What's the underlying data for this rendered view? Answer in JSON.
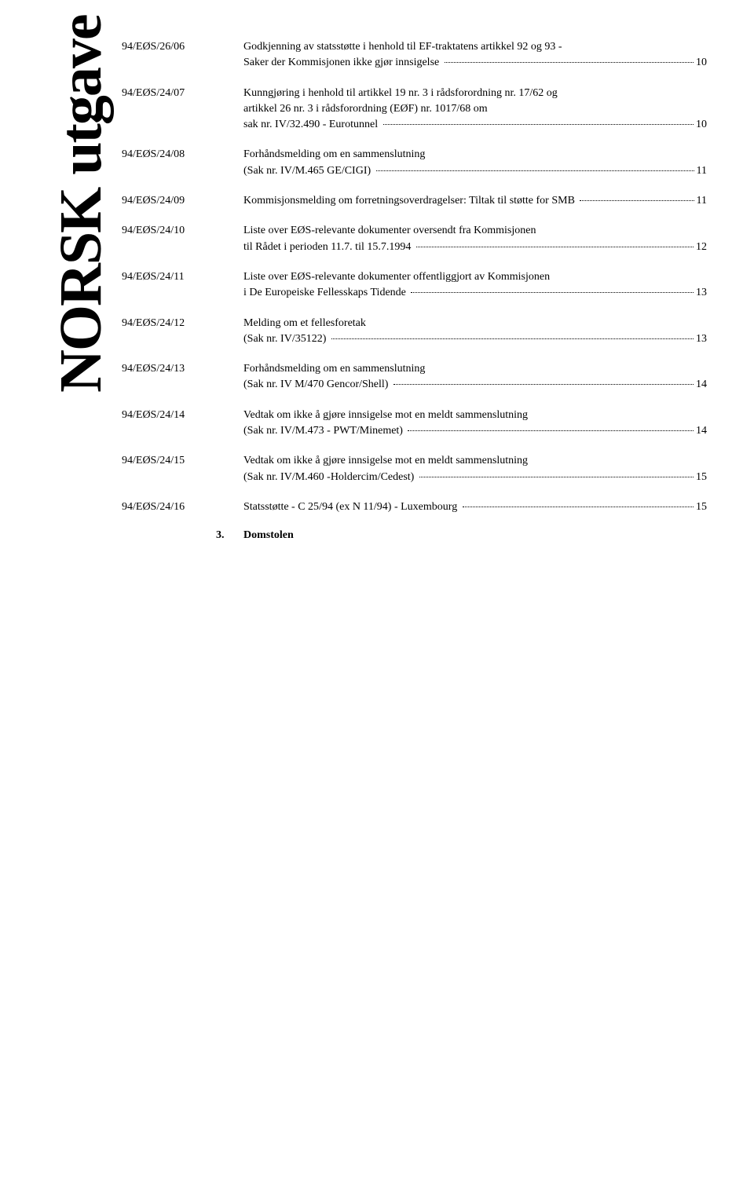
{
  "side_label": "NORSK utgave",
  "entries": [
    {
      "code": "94/EØS/26/06",
      "lines": [
        "Godkjenning av statsstøtte i henhold til EF-traktatens artikkel 92 og 93 -"
      ],
      "last_line": "Saker der Kommisjonen ikke gjør innsigelse",
      "page": "10"
    },
    {
      "code": "94/EØS/24/07",
      "lines": [
        "Kunngjøring i henhold til artikkel 19 nr. 3 i rådsforordning nr. 17/62 og",
        "artikkel 26 nr. 3 i rådsforordning (EØF) nr. 1017/68 om"
      ],
      "last_line": "sak nr. IV/32.490 - Eurotunnel",
      "page": "10"
    },
    {
      "code": "94/EØS/24/08",
      "lines": [
        "Forhåndsmelding om en sammenslutning"
      ],
      "last_line": "(Sak nr. IV/M.465 GE/CIGI)",
      "page": "11"
    },
    {
      "code": "94/EØS/24/09",
      "lines": [],
      "last_line": "Kommisjonsmelding om forretningsoverdragelser: Tiltak til støtte for SMB",
      "page": "11"
    },
    {
      "code": "94/EØS/24/10",
      "lines": [
        "Liste over EØS-relevante dokumenter oversendt fra Kommisjonen"
      ],
      "last_line": "til Rådet i perioden 11.7. til 15.7.1994",
      "page": "12"
    },
    {
      "code": "94/EØS/24/11",
      "lines": [
        "Liste over EØS-relevante dokumenter offentliggjort av Kommisjonen"
      ],
      "last_line": "i De Europeiske Fellesskaps Tidende",
      "page": "13"
    },
    {
      "code": "94/EØS/24/12",
      "lines": [
        "Melding om et fellesforetak"
      ],
      "last_line": "(Sak nr. IV/35122)",
      "page": "13"
    },
    {
      "code": "94/EØS/24/13",
      "lines": [
        "Forhåndsmelding om en sammenslutning"
      ],
      "last_line": "(Sak nr. IV M/470 Gencor/Shell)",
      "page": "14"
    },
    {
      "code": "94/EØS/24/14",
      "lines": [
        "Vedtak om ikke å gjøre innsigelse mot en meldt sammenslutning"
      ],
      "last_line": "(Sak nr. IV/M.473 - PWT/Minemet)",
      "page": "14"
    },
    {
      "code": "94/EØS/24/15",
      "lines": [
        "Vedtak om ikke å gjøre innsigelse mot en meldt sammenslutning"
      ],
      "last_line": "(Sak nr. IV/M.460 -Holdercim/Cedest)",
      "page": "15"
    },
    {
      "code": "94/EØS/24/16",
      "lines": [],
      "last_line": "Statsstøtte - C 25/94 (ex N 11/94) - Luxembourg",
      "page": "15"
    }
  ],
  "section": {
    "num": "3.",
    "title": "Domstolen"
  },
  "style": {
    "font_family": "Times New Roman",
    "body_font_size_pt": 14,
    "side_font_size_pt": 76,
    "text_color": "#000000",
    "background_color": "#ffffff",
    "dot_color": "#000000"
  }
}
